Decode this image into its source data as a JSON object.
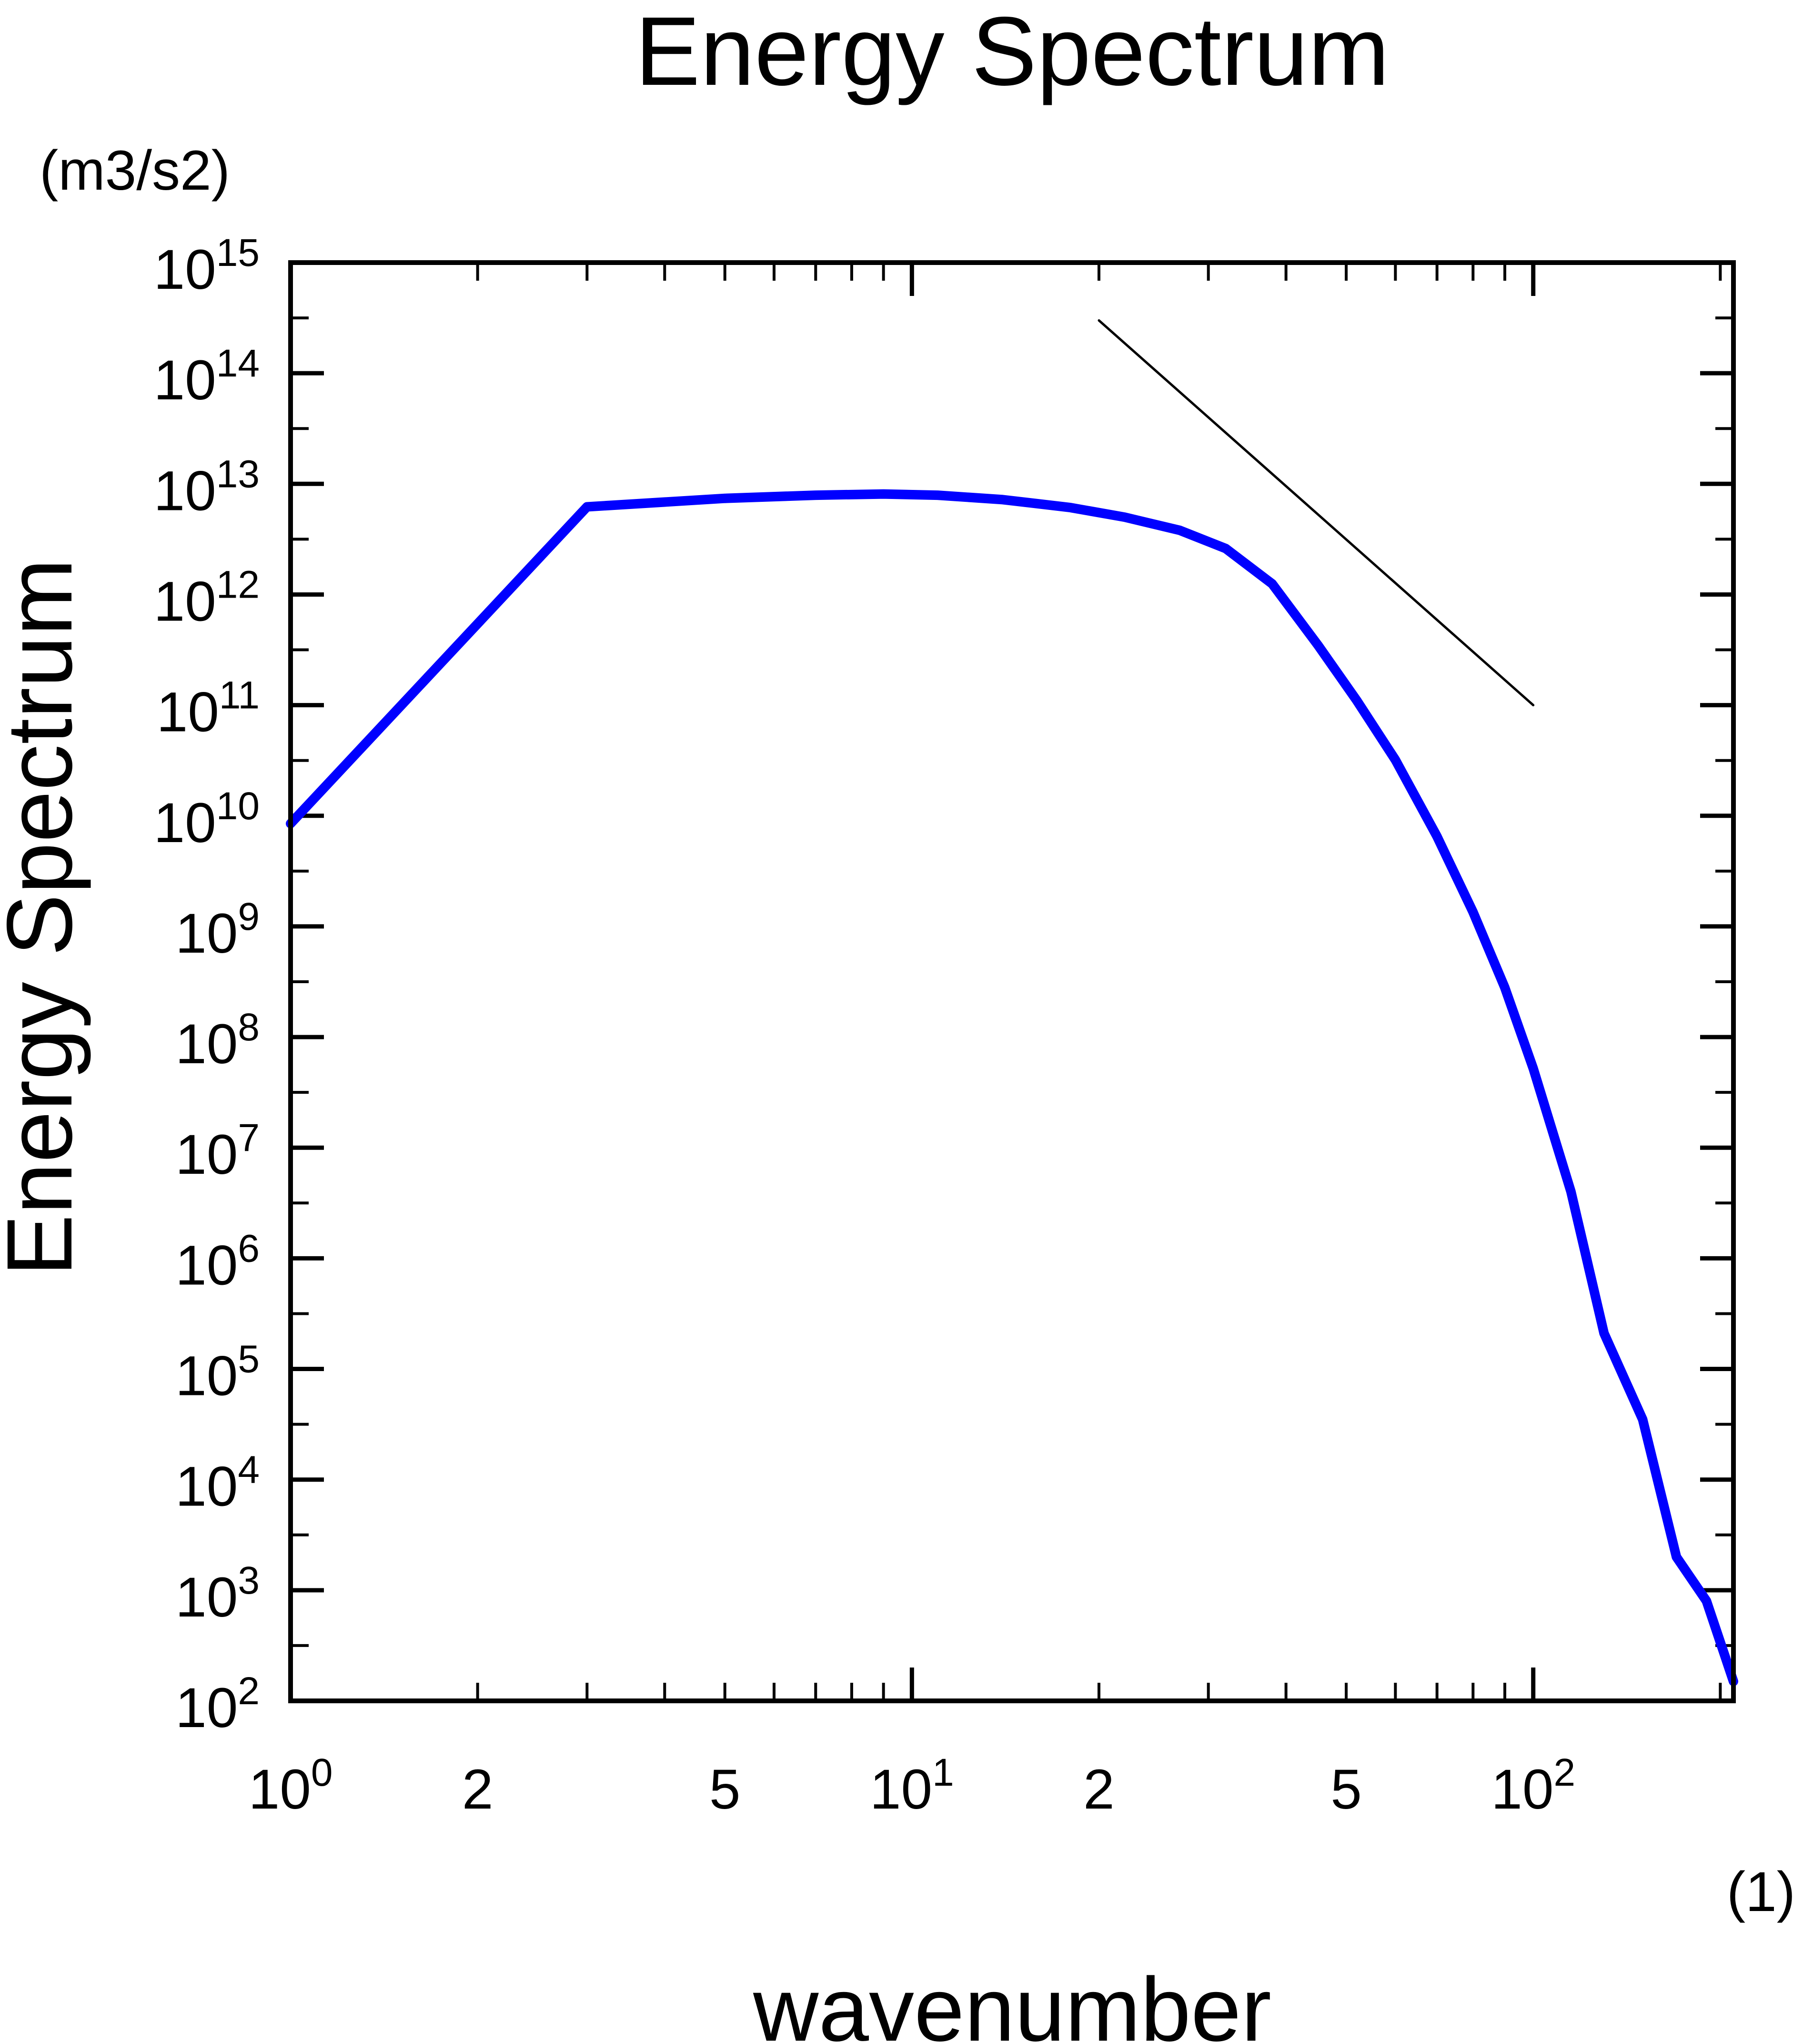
{
  "chart_data": {
    "type": "line",
    "title": "Energy Spectrum",
    "xlabel": "wavenumber",
    "ylabel": "Energy Spectrum",
    "x_unit": "(1)",
    "y_unit": "(m3/s2)",
    "xscale": "log",
    "yscale": "log",
    "xlim": [
      1,
      210
    ],
    "ylim": [
      100,
      1000000000000000.0
    ],
    "grid": false,
    "legend": "none",
    "x_major_ticks": [
      {
        "value": 1,
        "base": "10",
        "exp": "0"
      },
      {
        "value": 2,
        "base": "2",
        "exp": ""
      },
      {
        "value": 5,
        "base": "5",
        "exp": ""
      },
      {
        "value": 10,
        "base": "10",
        "exp": "1"
      },
      {
        "value": 20,
        "base": "2",
        "exp": ""
      },
      {
        "value": 50,
        "base": "5",
        "exp": ""
      },
      {
        "value": 100,
        "base": "10",
        "exp": "2"
      }
    ],
    "y_major_ticks": [
      {
        "value": 100.0,
        "base": "10",
        "exp": "2"
      },
      {
        "value": 1000.0,
        "base": "10",
        "exp": "3"
      },
      {
        "value": 10000.0,
        "base": "10",
        "exp": "4"
      },
      {
        "value": 100000.0,
        "base": "10",
        "exp": "5"
      },
      {
        "value": 1000000.0,
        "base": "10",
        "exp": "6"
      },
      {
        "value": 10000000.0,
        "base": "10",
        "exp": "7"
      },
      {
        "value": 100000000.0,
        "base": "10",
        "exp": "8"
      },
      {
        "value": 1000000000.0,
        "base": "10",
        "exp": "9"
      },
      {
        "value": 10000000000.0,
        "base": "10",
        "exp": "10"
      },
      {
        "value": 100000000000.0,
        "base": "10",
        "exp": "11"
      },
      {
        "value": 1000000000000.0,
        "base": "10",
        "exp": "12"
      },
      {
        "value": 10000000000000.0,
        "base": "10",
        "exp": "13"
      },
      {
        "value": 100000000000000.0,
        "base": "10",
        "exp": "14"
      },
      {
        "value": 1000000000000000.0,
        "base": "10",
        "exp": "15"
      }
    ],
    "series": [
      {
        "color": "#0000ff",
        "x": [
          1,
          3,
          5,
          7,
          9,
          11,
          14,
          18,
          22,
          27,
          32,
          38,
          45,
          52,
          60,
          70,
          80,
          90,
          100,
          115,
          130,
          150,
          170,
          190,
          210
        ],
        "y": [
          8500000000.0,
          6200000000000.0,
          7400000000000.0,
          7900000000000.0,
          8100000000000.0,
          7900000000000.0,
          7200000000000.0,
          6100000000000.0,
          5000000000000.0,
          3800000000000.0,
          2600000000000.0,
          1250000000000.0,
          350000000000.0,
          110000000000.0,
          32000000000.0,
          6500000000.0,
          1350000000.0,
          280000000.0,
          52000000.0,
          4000000.0,
          210000.0,
          35000.0,
          2000.0,
          800.0,
          150.0
        ]
      },
      {
        "color": "#000000",
        "x": [
          20,
          100
        ],
        "y": [
          300000000000000.0,
          100000000000.0
        ]
      }
    ]
  }
}
